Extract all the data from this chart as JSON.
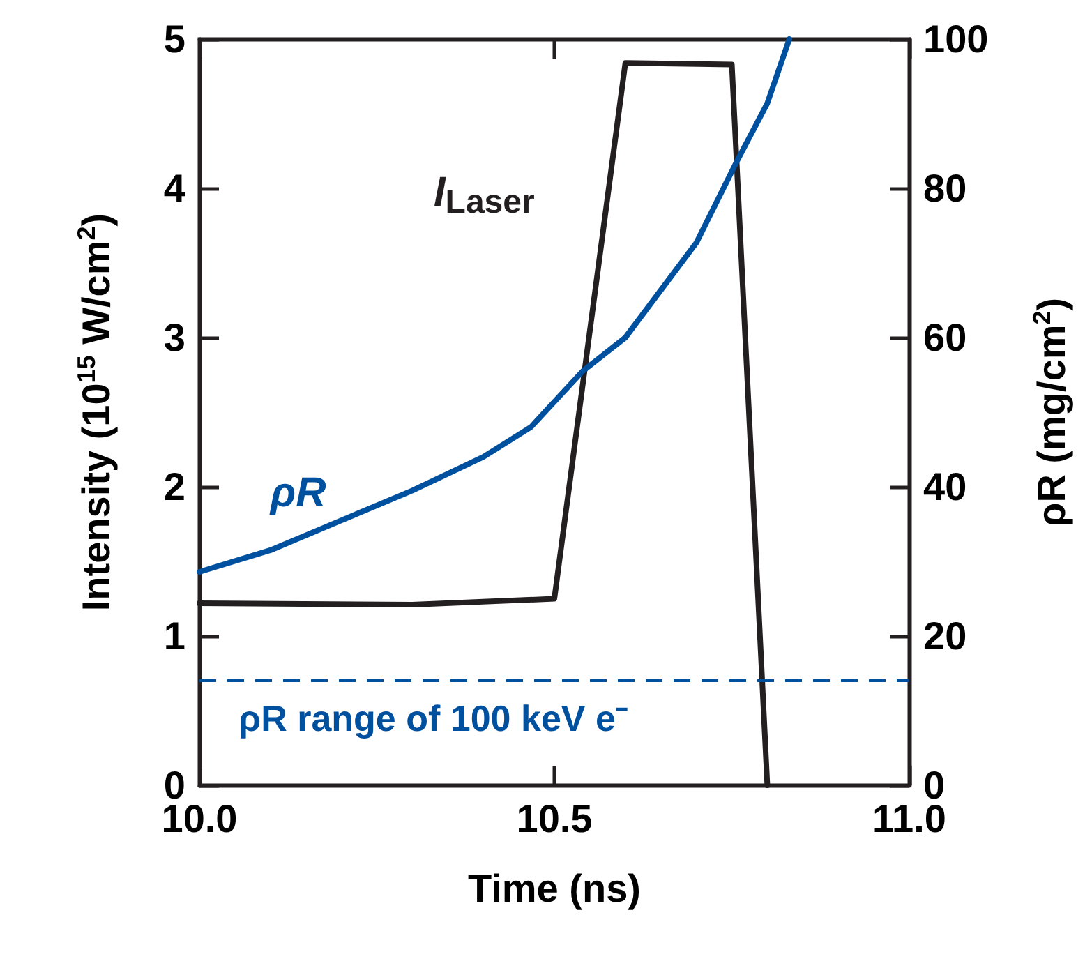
{
  "chart_data": {
    "type": "line",
    "xlabel": "Time (ns)",
    "ylabel": "Intensity (10$^{15}$ W/cm$^{2}$)",
    "y2label": "ρR (mg/cm$^{2}$)",
    "xlim": [
      10,
      11
    ],
    "xticks": [
      {
        "value": 10,
        "label": "10.0"
      },
      {
        "value": 10.5,
        "label": "10.5"
      },
      {
        "value": 11,
        "label": "11.0"
      }
    ],
    "ylim": [
      0,
      5
    ],
    "yticks": [
      0,
      1,
      2,
      3,
      4,
      5
    ],
    "y2lim": [
      0,
      100
    ],
    "y2ticks": [
      0,
      20,
      40,
      60,
      80,
      100
    ],
    "series": [
      {
        "name": "I$_{Laser}$",
        "color": "#231f20",
        "x": [
          10.0,
          10.3,
          10.5,
          10.6,
          10.75,
          10.8
        ],
        "values": [
          1.22,
          1.21,
          1.25,
          4.84,
          4.83,
          0
        ]
      },
      {
        "name": "ρR",
        "color": "#0050a0",
        "axis": "y2",
        "x": [
          10.0,
          10.1,
          10.2,
          10.3,
          10.4,
          10.467,
          10.54,
          10.6,
          10.7,
          10.757,
          10.8,
          10.831
        ],
        "values": [
          28.6,
          31.5,
          35.5,
          39.5,
          44,
          48,
          55.5,
          60,
          72.7,
          83.6,
          91.4,
          100
        ]
      }
    ],
    "ref_lines": [
      {
        "axis": "y2",
        "value": 14,
        "label": "ρR range of 100 keV e⁻",
        "color": "#0050a0",
        "line_style": "dashed"
      }
    ],
    "grid": false,
    "marker": "none",
    "line_style": "solid"
  }
}
